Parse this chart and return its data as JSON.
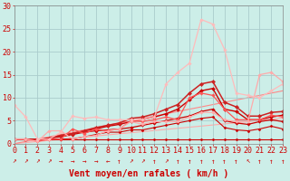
{
  "background_color": "#cceee8",
  "grid_color": "#bbdddd",
  "xlabel": "Vent moyen/en rafales ( km/h )",
  "xlim": [
    0,
    23
  ],
  "ylim": [
    0,
    30
  ],
  "yticks": [
    0,
    5,
    10,
    15,
    20,
    25,
    30
  ],
  "xticks": [
    0,
    1,
    2,
    3,
    4,
    5,
    6,
    7,
    8,
    9,
    10,
    11,
    12,
    13,
    14,
    15,
    16,
    17,
    18,
    19,
    20,
    21,
    22,
    23
  ],
  "series": [
    {
      "x": [
        0,
        1,
        2,
        3,
        4,
        5,
        6,
        7,
        8,
        9,
        10,
        11,
        12,
        13,
        14,
        15,
        16,
        17,
        18,
        19,
        20,
        21,
        22,
        23
      ],
      "y": [
        1.0,
        1.0,
        1.0,
        1.0,
        1.0,
        1.0,
        1.0,
        1.0,
        1.0,
        1.0,
        1.0,
        1.0,
        1.0,
        1.0,
        1.0,
        1.0,
        1.0,
        1.0,
        1.0,
        1.0,
        1.0,
        1.0,
        1.0,
        1.0
      ],
      "color": "#cc0000",
      "linewidth": 0.8,
      "marker": "D",
      "markersize": 1.5
    },
    {
      "x": [
        0,
        1,
        2,
        3,
        4,
        5,
        6,
        7,
        8,
        9,
        10,
        11,
        12,
        13,
        14,
        15,
        16,
        17,
        18,
        19,
        20,
        21,
        22,
        23
      ],
      "y": [
        1.0,
        1.0,
        1.0,
        1.0,
        1.0,
        1.0,
        1.5,
        2.0,
        2.5,
        2.5,
        3.0,
        3.0,
        3.5,
        4.0,
        4.5,
        5.0,
        5.5,
        5.8,
        3.5,
        3.0,
        2.8,
        3.2,
        3.8,
        3.2
      ],
      "color": "#cc0000",
      "linewidth": 0.8,
      "marker": "D",
      "markersize": 1.5
    },
    {
      "x": [
        0,
        1,
        2,
        3,
        4,
        5,
        6,
        7,
        8,
        9,
        10,
        11,
        12,
        13,
        14,
        15,
        16,
        17,
        18,
        19,
        20,
        21,
        22,
        23
      ],
      "y": [
        1.0,
        1.0,
        0.8,
        1.2,
        1.5,
        2.0,
        2.5,
        2.8,
        3.0,
        3.2,
        3.5,
        4.0,
        4.5,
        5.0,
        5.5,
        6.0,
        7.0,
        7.5,
        5.0,
        4.5,
        4.2,
        4.8,
        5.2,
        4.8
      ],
      "color": "#cc0000",
      "linewidth": 0.9,
      "marker": "D",
      "markersize": 1.8
    },
    {
      "x": [
        0,
        1,
        2,
        3,
        4,
        5,
        6,
        7,
        8,
        9,
        10,
        11,
        12,
        13,
        14,
        15,
        16,
        17,
        18,
        19,
        20,
        21,
        22,
        23
      ],
      "y": [
        1.0,
        1.0,
        0.8,
        1.2,
        1.8,
        2.2,
        2.8,
        3.2,
        3.8,
        4.2,
        4.8,
        5.2,
        5.8,
        6.5,
        7.5,
        9.5,
        11.5,
        12.0,
        7.5,
        7.0,
        5.2,
        5.2,
        5.8,
        6.2
      ],
      "color": "#cc0000",
      "linewidth": 1.0,
      "marker": "D",
      "markersize": 2.0
    },
    {
      "x": [
        0,
        1,
        2,
        3,
        4,
        5,
        6,
        7,
        8,
        9,
        10,
        11,
        12,
        13,
        14,
        15,
        16,
        17,
        18,
        19,
        20,
        21,
        22,
        23
      ],
      "y": [
        1.0,
        1.0,
        0.8,
        1.2,
        1.8,
        2.2,
        2.8,
        3.5,
        4.0,
        4.5,
        5.5,
        5.8,
        6.5,
        7.5,
        8.5,
        11.0,
        13.0,
        13.5,
        9.0,
        8.0,
        6.0,
        6.0,
        6.8,
        7.0
      ],
      "color": "#cc2222",
      "linewidth": 1.1,
      "marker": "D",
      "markersize": 2.2
    },
    {
      "x": [
        0,
        1,
        2,
        3,
        4,
        5,
        6,
        7,
        8,
        9,
        10,
        11,
        12,
        13,
        14,
        15,
        16,
        17,
        18,
        19,
        20,
        21,
        22,
        23
      ],
      "y": [
        1.0,
        1.0,
        0.5,
        1.0,
        1.0,
        3.2,
        2.2,
        3.2,
        2.8,
        3.2,
        5.0,
        4.8,
        5.2,
        5.8,
        5.2,
        10.0,
        11.0,
        10.5,
        7.5,
        5.2,
        5.2,
        5.2,
        6.2,
        5.8
      ],
      "color": "#ff5555",
      "linewidth": 0.9,
      "marker": "D",
      "markersize": 1.8
    },
    {
      "x": [
        0,
        1,
        2,
        3,
        4,
        5,
        6,
        7,
        8,
        9,
        10,
        11,
        12,
        13,
        14,
        15,
        16,
        17,
        18,
        19,
        20,
        21,
        22,
        23
      ],
      "y": [
        1.0,
        1.0,
        0.5,
        2.8,
        2.8,
        1.0,
        1.5,
        1.8,
        2.8,
        3.2,
        4.8,
        4.2,
        4.8,
        4.8,
        4.8,
        5.8,
        6.8,
        6.8,
        5.2,
        4.8,
        4.8,
        15.0,
        15.5,
        13.5
      ],
      "color": "#ffaaaa",
      "linewidth": 0.9,
      "marker": "D",
      "markersize": 1.8
    },
    {
      "x": [
        0,
        1,
        2,
        3,
        4,
        5,
        6,
        7,
        8,
        9,
        10,
        11,
        12,
        13,
        14,
        15,
        16,
        17,
        18,
        19,
        20,
        21,
        22,
        23
      ],
      "y": [
        8.5,
        5.8,
        1.0,
        1.0,
        2.5,
        6.0,
        5.5,
        5.8,
        5.2,
        5.2,
        5.2,
        5.2,
        5.8,
        13.0,
        15.5,
        17.5,
        27.0,
        26.0,
        20.5,
        11.0,
        10.5,
        10.0,
        11.5,
        13.0
      ],
      "color": "#ffbbbb",
      "linewidth": 0.9,
      "marker": "D",
      "markersize": 1.8
    },
    {
      "x": [
        0,
        23
      ],
      "y": [
        0,
        5.5
      ],
      "color": "#ffaaaa",
      "linewidth": 0.8,
      "marker": null,
      "markersize": 0
    },
    {
      "x": [
        0,
        23
      ],
      "y": [
        0,
        11.5
      ],
      "color": "#ff8888",
      "linewidth": 0.8,
      "marker": null,
      "markersize": 0
    }
  ],
  "arrows": [
    "↗",
    "↗",
    "↗",
    "↗",
    "→",
    "→",
    "→",
    "→",
    "←",
    "↑",
    "↗",
    "↗",
    "↑",
    "↗",
    "↑",
    "↑",
    "↑",
    "↑",
    "↑",
    "↑",
    "↖",
    "↑",
    "↑",
    "↑"
  ],
  "xlabel_color": "#cc0000",
  "xlabel_fontsize": 7,
  "tick_color": "#cc0000",
  "tick_fontsize": 6,
  "arrow_fontsize": 5.5
}
